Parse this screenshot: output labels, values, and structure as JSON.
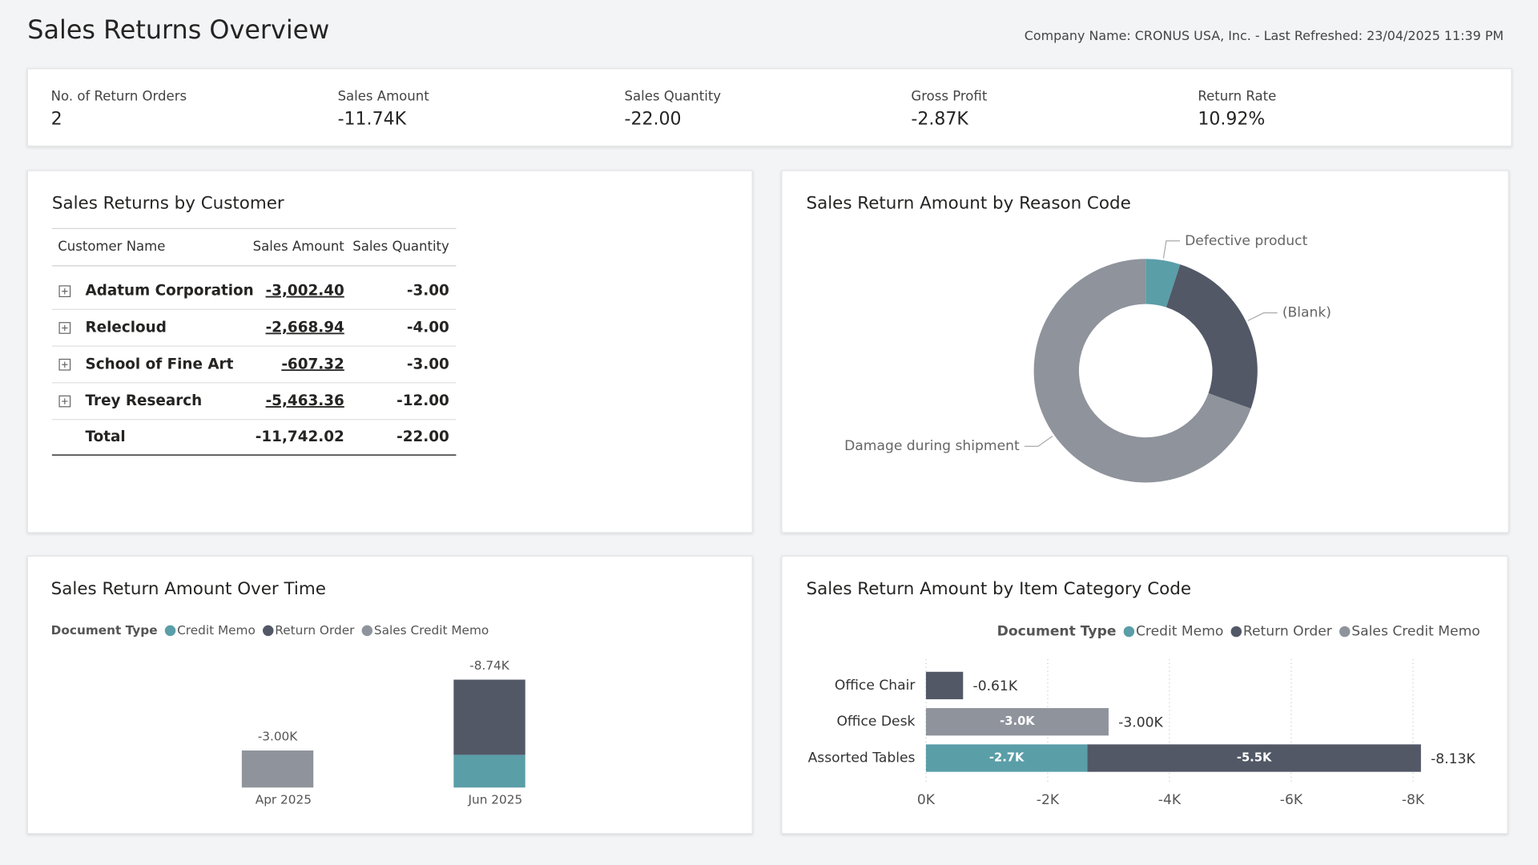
{
  "header": {
    "title": "Sales Returns Overview",
    "info": "Company Name: CRONUS USA, Inc. - Last Refreshed: 23/04/2025 11:39 PM"
  },
  "kpis": [
    {
      "label": "No. of Return Orders",
      "value": "2"
    },
    {
      "label": "Sales Amount",
      "value": "-11.74K"
    },
    {
      "label": "Sales Quantity",
      "value": "-22.00"
    },
    {
      "label": "Gross Profit",
      "value": "-2.87K"
    },
    {
      "label": "Return Rate",
      "value": "10.92%"
    }
  ],
  "table": {
    "title": "Sales Returns by Customer",
    "columns": [
      "Customer Name",
      "Sales Amount",
      "Sales Quantity"
    ],
    "rows": [
      [
        "Adatum Corporation",
        "-3,002.40",
        "-3.00"
      ],
      [
        "Relecloud",
        "-2,668.94",
        "-4.00"
      ],
      [
        "School of Fine Art",
        "-607.32",
        "-3.00"
      ],
      [
        "Trey Research",
        "-5,463.36",
        "-12.00"
      ]
    ],
    "total": [
      "Total",
      "-11,742.02",
      "-22.00"
    ]
  },
  "chart_data": [
    {
      "type": "donut",
      "title": "Sales Return Amount by Reason Code",
      "categories": [
        "Defective product",
        "(Blank)",
        "Damage during shipment"
      ],
      "values": [
        5,
        25.5,
        69.5
      ],
      "colors": [
        "#5a9ea8",
        "#525866",
        "#8f939c"
      ]
    },
    {
      "type": "stacked-column",
      "title": "Sales Return Amount Over Time",
      "legend_title": "Document Type",
      "categories": [
        "Apr 2025",
        "Jun 2025"
      ],
      "series": [
        {
          "name": "Credit Memo",
          "color": "#5a9ea8",
          "values": [
            null,
            -2650
          ]
        },
        {
          "name": "Return Order",
          "color": "#525866",
          "values": [
            null,
            -6090
          ]
        },
        {
          "name": "Sales Credit Memo",
          "color": "#8f939c",
          "values": [
            -3000,
            null
          ]
        }
      ],
      "total_labels": [
        "-3.00K",
        "-8.74K"
      ]
    },
    {
      "type": "stacked-hbar",
      "title": "Sales Return Amount by Item Category Code",
      "legend_title": "Document Type",
      "categories": [
        "Office Chair",
        "Office Desk",
        "Assorted Tables"
      ],
      "series": [
        {
          "name": "Credit Memo",
          "color": "#5a9ea8",
          "values": [
            null,
            null,
            -2650
          ],
          "value_labels": [
            null,
            null,
            "-2.7K"
          ]
        },
        {
          "name": "Return Order",
          "color": "#525866",
          "values": [
            -610,
            null,
            -5480
          ],
          "value_labels": [
            null,
            null,
            "-5.5K"
          ]
        },
        {
          "name": "Sales Credit Memo",
          "color": "#8f939c",
          "values": [
            null,
            -3000,
            null
          ],
          "value_labels": [
            null,
            "-3.0K",
            null
          ]
        }
      ],
      "total_labels": [
        "-0.61K",
        "-3.00K",
        "-8.13K"
      ],
      "xlim": [
        0,
        -8200
      ],
      "xticks": [
        {
          "value": 0,
          "label": "0K"
        },
        {
          "value": -2000,
          "label": "-2K"
        },
        {
          "value": -4000,
          "label": "-4K"
        },
        {
          "value": -6000,
          "label": "-6K"
        },
        {
          "value": -8000,
          "label": "-8K"
        }
      ],
      "grid": true
    }
  ]
}
